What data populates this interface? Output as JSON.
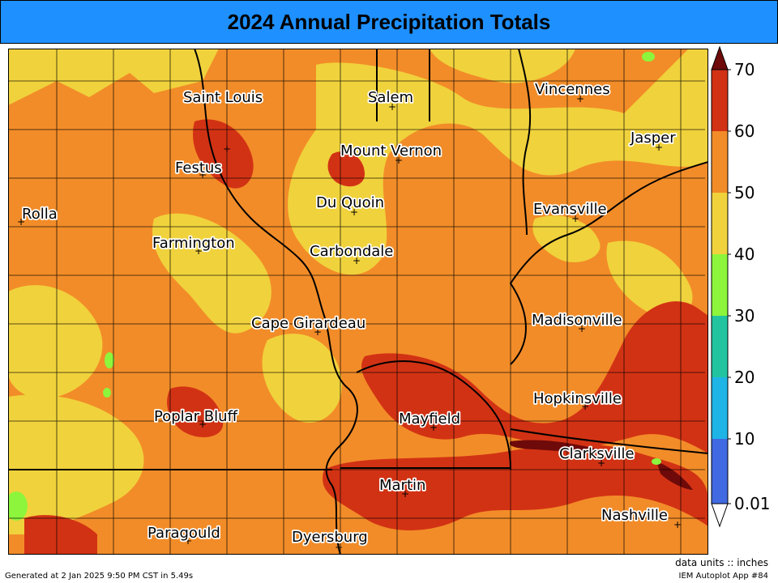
{
  "title": "2024 Annual Precipitation Totals",
  "footer": {
    "generated": "Generated at 2 Jan 2025 9:50 PM CST in 5.49s",
    "units": "data units :: inches",
    "app": "IEM Autoplot App #84"
  },
  "colors": {
    "title_bg": "#1e90ff",
    "band_0_10": "#4169e1",
    "band_10_20": "#1e9be8",
    "band_20_30": "#22c4c4",
    "band_30_40": "#2ee69a",
    "band_40_50": "#8cf53c",
    "band_50_60": "#f0d23c",
    "band_60_70": "#f28c28",
    "band_70_plus": "#d23214",
    "over": "#6e0a0a"
  },
  "colorbar": {
    "ticks": [
      "70",
      "60",
      "50",
      "40",
      "30",
      "20",
      "10",
      "0.01"
    ]
  },
  "cities": [
    {
      "name": "Saint Louis",
      "id": "saint-louis"
    },
    {
      "name": "Salem",
      "id": "salem"
    },
    {
      "name": "Vincennes",
      "id": "vincennes"
    },
    {
      "name": "Jasper",
      "id": "jasper"
    },
    {
      "name": "Mount Vernon",
      "id": "mount-vernon"
    },
    {
      "name": "Festus",
      "id": "festus"
    },
    {
      "name": "Du Quoin",
      "id": "du-quoin"
    },
    {
      "name": "Rolla",
      "id": "rolla"
    },
    {
      "name": "Evansville",
      "id": "evansville"
    },
    {
      "name": "Farmington",
      "id": "farmington"
    },
    {
      "name": "Carbondale",
      "id": "carbondale"
    },
    {
      "name": "Cape Girardeau",
      "id": "cape-girardeau"
    },
    {
      "name": "Madisonville",
      "id": "madisonville"
    },
    {
      "name": "Hopkinsville",
      "id": "hopkinsville"
    },
    {
      "name": "Poplar Bluff",
      "id": "poplar-bluff"
    },
    {
      "name": "Mayfield",
      "id": "mayfield"
    },
    {
      "name": "Clarksville",
      "id": "clarksville"
    },
    {
      "name": "Martin",
      "id": "martin"
    },
    {
      "name": "Nashville",
      "id": "nashville"
    },
    {
      "name": "Paragould",
      "id": "paragould"
    },
    {
      "name": "Dyersburg",
      "id": "dyersburg"
    }
  ]
}
